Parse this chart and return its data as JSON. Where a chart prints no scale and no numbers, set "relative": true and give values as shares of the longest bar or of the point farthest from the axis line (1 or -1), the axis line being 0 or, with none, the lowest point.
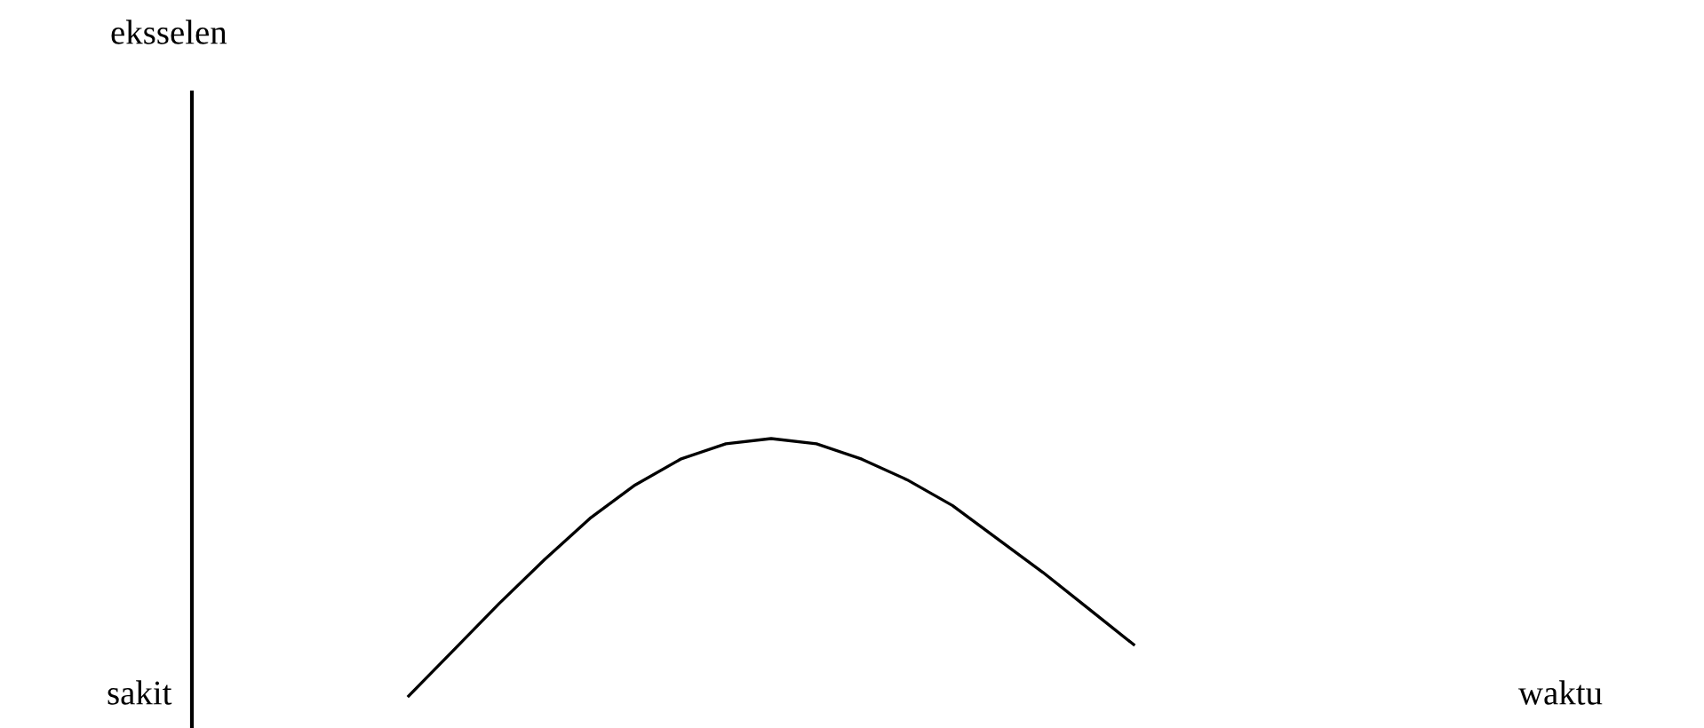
{
  "chart_data": {
    "type": "line",
    "relative": true,
    "annotations": [
      "eksselen",
      "sakit",
      "waktu"
    ],
    "categories": [
      null,
      null,
      null,
      null,
      null,
      null,
      null,
      null,
      null,
      null,
      null,
      null,
      null,
      null,
      null,
      null,
      null
    ],
    "series": [
      {
        "color": "#000000",
        "values": [
          0,
          0.18,
          0.36,
          0.53,
          0.69,
          0.82,
          0.92,
          0.98,
          1.0,
          0.98,
          0.92,
          0.84,
          0.74,
          0.61,
          0.48,
          0.34,
          0.2
        ]
      }
    ],
    "legend": false,
    "marker": "none",
    "line_style": "solid"
  }
}
